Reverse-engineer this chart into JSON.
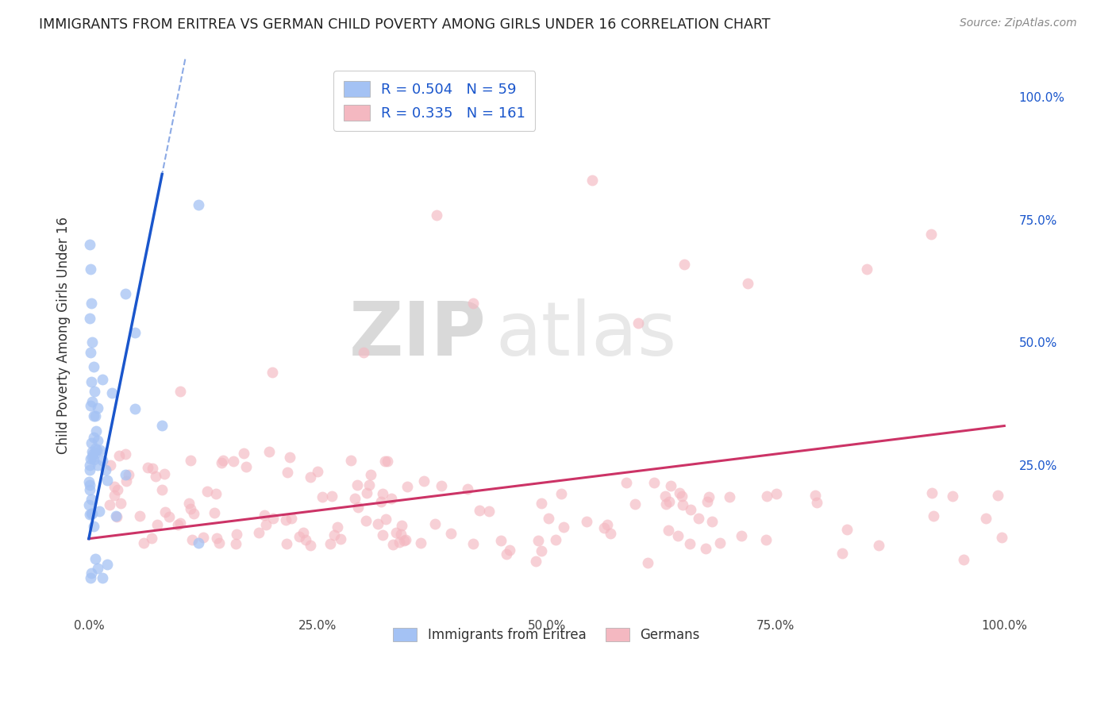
{
  "title": "IMMIGRANTS FROM ERITREA VS GERMAN CHILD POVERTY AMONG GIRLS UNDER 16 CORRELATION CHART",
  "source": "Source: ZipAtlas.com",
  "ylabel": "Child Poverty Among Girls Under 16",
  "r_blue": 0.504,
  "n_blue": 59,
  "r_pink": 0.335,
  "n_pink": 161,
  "legend_labels": [
    "Immigrants from Eritrea",
    "Germans"
  ],
  "blue_scatter_color": "#a4c2f4",
  "pink_scatter_color": "#f4b8c1",
  "blue_line_color": "#1a56cc",
  "pink_line_color": "#cc3366",
  "right_ytick_labels": [
    "25.0%",
    "50.0%",
    "75.0%",
    "100.0%"
  ],
  "right_ytick_values": [
    0.25,
    0.5,
    0.75,
    1.0
  ],
  "xtick_labels": [
    "0.0%",
    "25.0%",
    "50.0%",
    "75.0%",
    "100.0%"
  ],
  "xtick_values": [
    0.0,
    0.25,
    0.5,
    0.75,
    1.0
  ],
  "watermark_zip": "ZIP",
  "watermark_atlas": "atlas",
  "background_color": "#ffffff",
  "grid_color": "#bbbbbb",
  "xlim": [
    -0.01,
    1.01
  ],
  "ylim": [
    -0.05,
    1.08
  ]
}
